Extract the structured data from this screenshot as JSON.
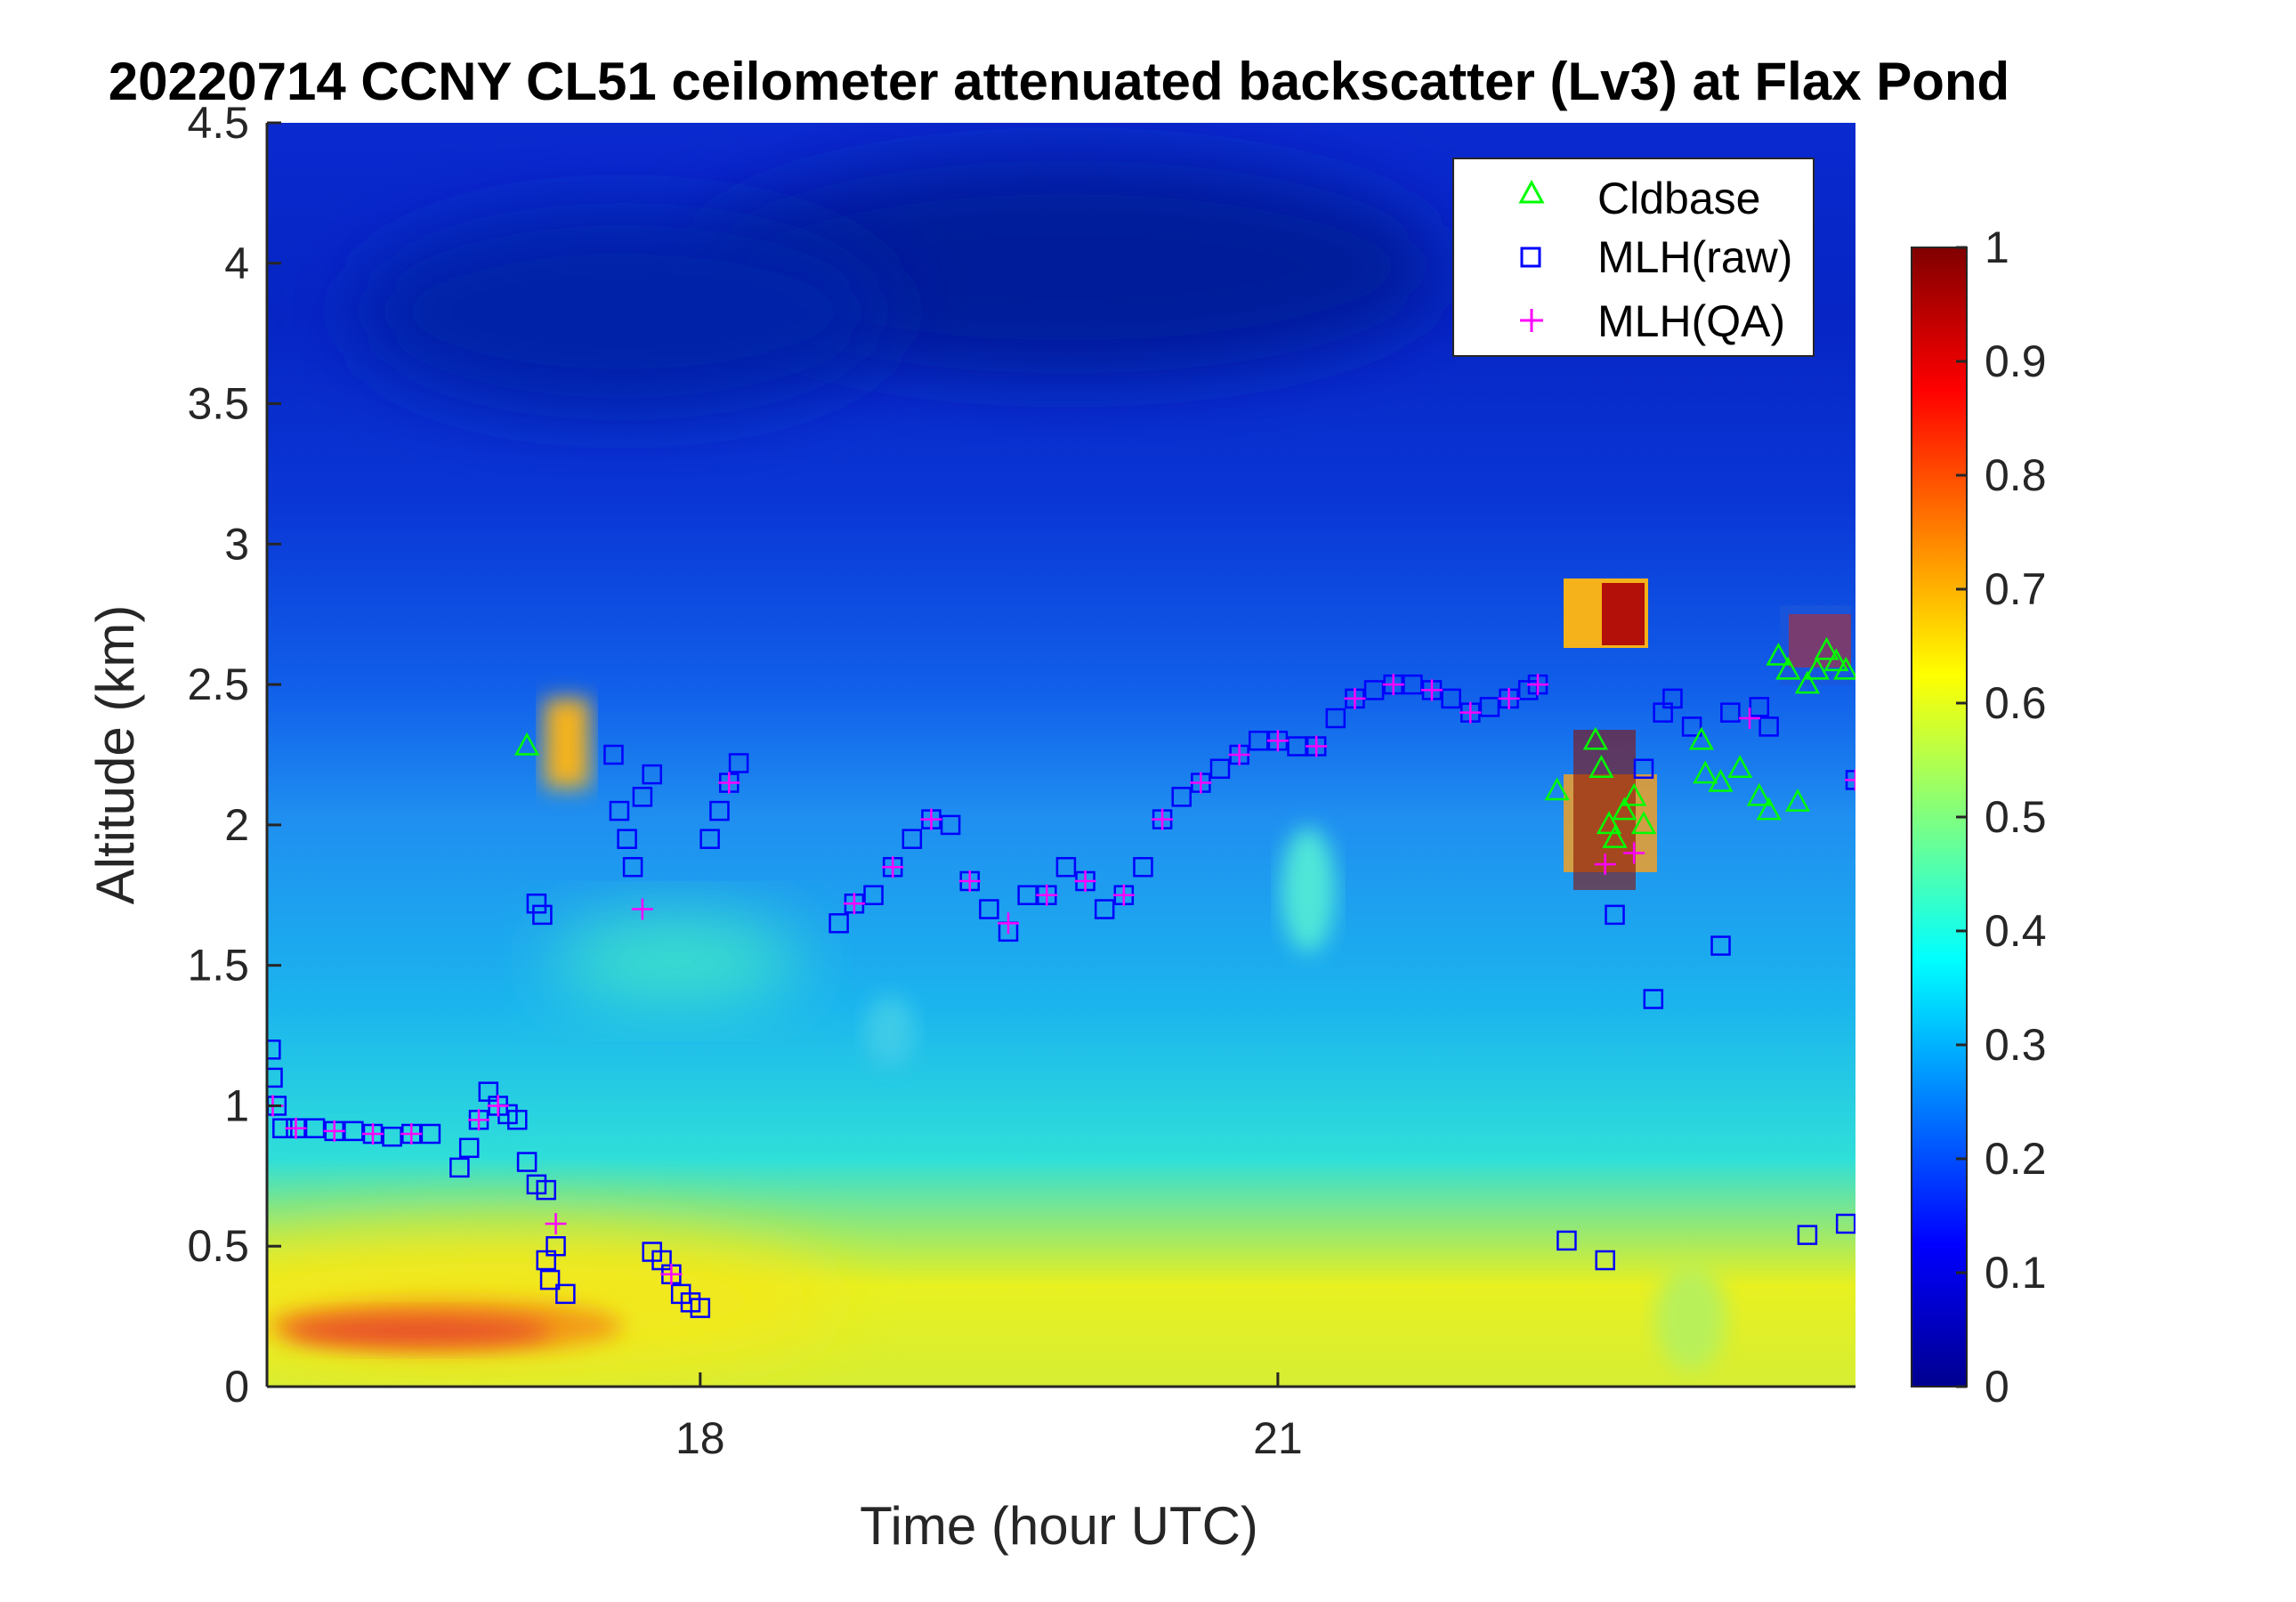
{
  "chart_data": {
    "type": "heatmap",
    "title": "20220714 CCNY CL51 ceilometer attenuated backscatter (Lv3) at Flax Pond",
    "xlabel": "Time (hour UTC)",
    "ylabel": "Altitude (km)",
    "xlim": [
      15.75,
      24.0
    ],
    "ylim": [
      0,
      4.5
    ],
    "x_ticks": [
      "18",
      "21"
    ],
    "y_ticks": [
      "0",
      "0.5",
      "1",
      "1.5",
      "2",
      "2.5",
      "3",
      "3.5",
      "4",
      "4.5"
    ],
    "colorbar": {
      "range": [
        0,
        1
      ],
      "ticks": [
        "0",
        "0.1",
        "0.2",
        "0.3",
        "0.4",
        "0.5",
        "0.6",
        "0.7",
        "0.8",
        "0.9",
        "1"
      ],
      "colormap": "jet"
    },
    "legend": {
      "placement": "top-right",
      "entries": [
        {
          "label": "Cldbase",
          "marker": "triangle",
          "color": "#00ff00"
        },
        {
          "label": "MLH(raw)",
          "marker": "square",
          "color": "#0000ff"
        },
        {
          "label": "MLH(QA)",
          "marker": "plus",
          "color": "#ff00ff"
        }
      ]
    },
    "series": [
      {
        "name": "MLH(raw)",
        "points": [
          [
            15.77,
            1.2
          ],
          [
            15.78,
            1.1
          ],
          [
            15.8,
            1.0
          ],
          [
            15.83,
            0.92
          ],
          [
            15.9,
            0.92
          ],
          [
            16.0,
            0.92
          ],
          [
            16.1,
            0.91
          ],
          [
            16.2,
            0.91
          ],
          [
            16.3,
            0.9
          ],
          [
            16.4,
            0.89
          ],
          [
            16.5,
            0.9
          ],
          [
            16.6,
            0.9
          ],
          [
            16.75,
            0.78
          ],
          [
            16.8,
            0.85
          ],
          [
            16.85,
            0.95
          ],
          [
            16.9,
            1.05
          ],
          [
            16.95,
            1.0
          ],
          [
            17.0,
            0.97
          ],
          [
            17.05,
            0.95
          ],
          [
            17.1,
            0.8
          ],
          [
            17.15,
            0.72
          ],
          [
            17.2,
            0.7
          ],
          [
            17.15,
            1.72
          ],
          [
            17.18,
            1.68
          ],
          [
            17.2,
            0.45
          ],
          [
            17.22,
            0.38
          ],
          [
            17.25,
            0.5
          ],
          [
            17.3,
            0.33
          ],
          [
            17.55,
            2.25
          ],
          [
            17.58,
            2.05
          ],
          [
            17.62,
            1.95
          ],
          [
            17.65,
            1.85
          ],
          [
            17.7,
            2.1
          ],
          [
            17.75,
            2.18
          ],
          [
            17.75,
            0.48
          ],
          [
            17.8,
            0.45
          ],
          [
            17.85,
            0.4
          ],
          [
            17.9,
            0.33
          ],
          [
            17.95,
            0.3
          ],
          [
            18.0,
            0.28
          ],
          [
            18.05,
            1.95
          ],
          [
            18.1,
            2.05
          ],
          [
            18.15,
            2.15
          ],
          [
            18.2,
            2.22
          ],
          [
            18.72,
            1.65
          ],
          [
            18.8,
            1.72
          ],
          [
            18.9,
            1.75
          ],
          [
            19.0,
            1.85
          ],
          [
            19.1,
            1.95
          ],
          [
            19.2,
            2.02
          ],
          [
            19.3,
            2.0
          ],
          [
            19.4,
            1.8
          ],
          [
            19.5,
            1.7
          ],
          [
            19.6,
            1.62
          ],
          [
            19.7,
            1.75
          ],
          [
            19.8,
            1.75
          ],
          [
            19.9,
            1.85
          ],
          [
            20.0,
            1.8
          ],
          [
            20.1,
            1.7
          ],
          [
            20.2,
            1.75
          ],
          [
            20.3,
            1.85
          ],
          [
            20.4,
            2.02
          ],
          [
            20.5,
            2.1
          ],
          [
            20.6,
            2.15
          ],
          [
            20.7,
            2.2
          ],
          [
            20.8,
            2.25
          ],
          [
            20.9,
            2.3
          ],
          [
            21.0,
            2.3
          ],
          [
            21.1,
            2.28
          ],
          [
            21.2,
            2.28
          ],
          [
            21.3,
            2.38
          ],
          [
            21.4,
            2.45
          ],
          [
            21.5,
            2.48
          ],
          [
            21.6,
            2.5
          ],
          [
            21.7,
            2.5
          ],
          [
            21.8,
            2.48
          ],
          [
            21.9,
            2.45
          ],
          [
            22.0,
            2.4
          ],
          [
            22.1,
            2.42
          ],
          [
            22.2,
            2.45
          ],
          [
            22.3,
            2.48
          ],
          [
            22.35,
            2.5
          ],
          [
            22.5,
            0.52
          ],
          [
            22.7,
            0.45
          ],
          [
            22.75,
            1.68
          ],
          [
            22.9,
            2.2
          ],
          [
            22.95,
            1.38
          ],
          [
            23.0,
            2.4
          ],
          [
            23.05,
            2.45
          ],
          [
            23.15,
            2.35
          ],
          [
            23.3,
            1.57
          ],
          [
            23.35,
            2.4
          ],
          [
            23.5,
            2.42
          ],
          [
            23.55,
            2.35
          ],
          [
            23.75,
            0.54
          ],
          [
            23.95,
            0.58
          ],
          [
            24.0,
            2.16
          ]
        ]
      },
      {
        "name": "MLH(QA)",
        "points": [
          [
            15.78,
            1.0
          ],
          [
            15.9,
            0.92
          ],
          [
            16.1,
            0.91
          ],
          [
            16.3,
            0.9
          ],
          [
            16.5,
            0.9
          ],
          [
            16.85,
            0.95
          ],
          [
            16.95,
            1.0
          ],
          [
            17.25,
            0.58
          ],
          [
            17.7,
            1.7
          ],
          [
            17.85,
            0.4
          ],
          [
            18.15,
            2.15
          ],
          [
            18.8,
            1.72
          ],
          [
            19.0,
            1.85
          ],
          [
            19.2,
            2.02
          ],
          [
            19.4,
            1.8
          ],
          [
            19.6,
            1.65
          ],
          [
            19.8,
            1.75
          ],
          [
            20.0,
            1.8
          ],
          [
            20.2,
            1.75
          ],
          [
            20.4,
            2.02
          ],
          [
            20.6,
            2.15
          ],
          [
            20.8,
            2.25
          ],
          [
            21.0,
            2.3
          ],
          [
            21.2,
            2.28
          ],
          [
            21.4,
            2.45
          ],
          [
            21.6,
            2.5
          ],
          [
            21.8,
            2.48
          ],
          [
            22.0,
            2.4
          ],
          [
            22.2,
            2.45
          ],
          [
            22.35,
            2.5
          ],
          [
            22.7,
            1.86
          ],
          [
            22.85,
            1.9
          ],
          [
            23.45,
            2.38
          ],
          [
            24.0,
            2.16
          ]
        ]
      },
      {
        "name": "Cldbase",
        "points": [
          [
            17.1,
            2.28
          ],
          [
            22.45,
            2.12
          ],
          [
            22.65,
            2.3
          ],
          [
            22.68,
            2.2
          ],
          [
            22.72,
            2.0
          ],
          [
            22.75,
            1.95
          ],
          [
            22.8,
            2.05
          ],
          [
            22.85,
            2.1
          ],
          [
            22.9,
            2.0
          ],
          [
            23.2,
            2.3
          ],
          [
            23.22,
            2.18
          ],
          [
            23.3,
            2.15
          ],
          [
            23.4,
            2.2
          ],
          [
            23.5,
            2.1
          ],
          [
            23.55,
            2.05
          ],
          [
            23.7,
            2.08
          ],
          [
            23.6,
            2.6
          ],
          [
            23.65,
            2.55
          ],
          [
            23.75,
            2.5
          ],
          [
            23.8,
            2.55
          ],
          [
            23.85,
            2.62
          ],
          [
            23.9,
            2.58
          ],
          [
            23.95,
            2.55
          ]
        ]
      }
    ]
  }
}
